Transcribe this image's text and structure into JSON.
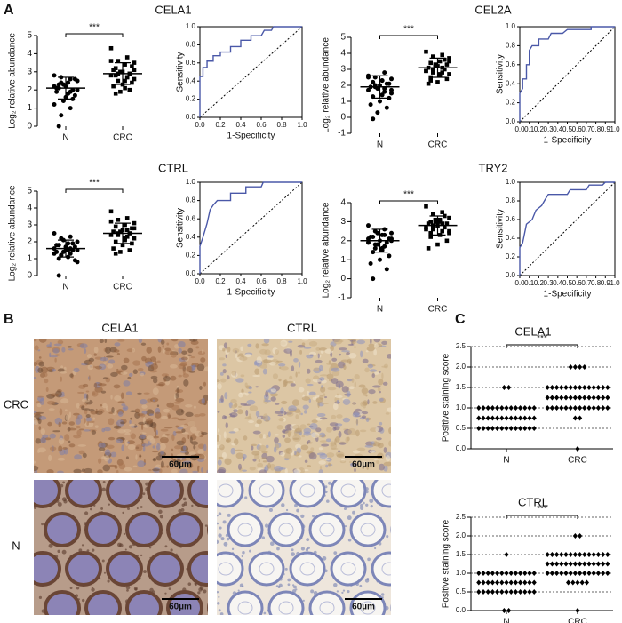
{
  "panel_labels": [
    "A",
    "B",
    "C"
  ],
  "histology": {
    "columns": [
      "CELA1",
      "CTRL"
    ],
    "rows": [
      "CRC",
      "N"
    ],
    "scale_bar": "60µm"
  },
  "chart_data": [
    {
      "type": "strip",
      "title": "CELA1",
      "y_label": "Log₂ relative abundance",
      "annotation": "***",
      "categories": [
        "N",
        "CRC"
      ],
      "ylim": [
        0,
        5
      ],
      "yticks": [
        0,
        1,
        2,
        3,
        4,
        5
      ],
      "groups": [
        {
          "marker": "circle",
          "mean": 2.1,
          "sd": 0.6,
          "values": [
            2.8,
            2.6,
            2.7,
            2.5,
            2.4,
            2.3,
            2.6,
            2.2,
            2.1,
            2.0,
            2.3,
            2.2,
            1.9,
            2.4,
            2.0,
            1.8,
            2.1,
            1.7,
            1.6,
            1.9,
            1.5,
            1.4,
            1.2,
            1.0,
            0.6,
            2.5,
            1.8,
            0.0
          ]
        },
        {
          "marker": "square",
          "mean": 2.9,
          "sd": 0.6,
          "values": [
            4.3,
            3.8,
            3.6,
            3.5,
            3.4,
            3.2,
            3.3,
            3.0,
            3.1,
            2.9,
            3.0,
            2.8,
            2.7,
            2.9,
            2.6,
            2.5,
            2.8,
            2.4,
            2.3,
            2.2,
            2.0,
            1.9,
            3.6,
            2.7,
            2.5,
            3.1,
            2.1,
            1.8
          ]
        }
      ]
    },
    {
      "type": "line",
      "x_label": "1-Specificity",
      "y_label": "Sensitivity",
      "color": "#4a58a8",
      "xlim": [
        0,
        1
      ],
      "ylim": [
        0,
        1
      ],
      "xticks": [
        {
          "value": 0,
          "label": "0.0"
        },
        {
          "value": 0.2,
          "label": "0.2"
        },
        {
          "value": 0.4,
          "label": "0.4"
        },
        {
          "value": 0.6,
          "label": "0.6"
        },
        {
          "value": 0.8,
          "label": "0.8"
        },
        {
          "value": 1,
          "label": "1.0"
        }
      ],
      "yticks": [
        {
          "value": 0,
          "label": "0.0"
        },
        {
          "value": 0.2,
          "label": "0.2"
        },
        {
          "value": 0.4,
          "label": "0.4"
        },
        {
          "value": 0.6,
          "label": "0.6"
        },
        {
          "value": 0.8,
          "label": "0.8"
        },
        {
          "value": 1,
          "label": "1.0"
        }
      ],
      "x": [
        0,
        0,
        0.03,
        0.03,
        0.07,
        0.07,
        0.13,
        0.13,
        0.2,
        0.2,
        0.3,
        0.3,
        0.4,
        0.4,
        0.5,
        0.5,
        0.6,
        0.63,
        0.7,
        0.72,
        1
      ],
      "series": [
        {
          "values": [
            0,
            0.45,
            0.45,
            0.55,
            0.55,
            0.62,
            0.62,
            0.68,
            0.68,
            0.72,
            0.72,
            0.78,
            0.78,
            0.85,
            0.85,
            0.9,
            0.9,
            0.96,
            0.96,
            1,
            1
          ]
        }
      ]
    },
    {
      "type": "strip",
      "title": "CEL2A",
      "y_label": "Log₂ relative abundance",
      "annotation": "***",
      "categories": [
        "N",
        "CRC"
      ],
      "ylim": [
        -1,
        5
      ],
      "yticks": [
        -1,
        0,
        1,
        2,
        3,
        4,
        5
      ],
      "groups": [
        {
          "marker": "circle",
          "mean": 1.9,
          "sd": 0.7,
          "values": [
            2.6,
            2.8,
            2.5,
            2.4,
            2.3,
            2.2,
            2.1,
            2.0,
            1.9,
            2.1,
            1.8,
            1.7,
            1.6,
            1.9,
            1.5,
            1.4,
            1.3,
            1.2,
            1.0,
            0.8,
            0.6,
            0.3,
            2.5,
            1.8,
            2.0,
            1.7,
            2.3,
            -0.1
          ]
        },
        {
          "marker": "square",
          "mean": 3.1,
          "sd": 0.6,
          "values": [
            4.1,
            3.9,
            3.8,
            3.7,
            3.5,
            3.4,
            3.3,
            3.2,
            3.1,
            3.0,
            3.2,
            2.9,
            2.8,
            3.0,
            2.7,
            2.6,
            2.5,
            2.4,
            2.2,
            2.1,
            3.6,
            3.3,
            2.9,
            3.1,
            2.8,
            3.5,
            2.7,
            2.3
          ]
        }
      ]
    },
    {
      "type": "line",
      "x_label": "1-Specificity",
      "y_label": "Sensitivity",
      "color": "#4a58a8",
      "xlim": [
        0,
        1
      ],
      "ylim": [
        0,
        1
      ],
      "xticks": [
        {
          "value": 0,
          "label": "0.0"
        },
        {
          "value": 0.1,
          "label": "0.1"
        },
        {
          "value": 0.2,
          "label": "0.2"
        },
        {
          "value": 0.3,
          "label": "0.3"
        },
        {
          "value": 0.4,
          "label": "0.4"
        },
        {
          "value": 0.5,
          "label": "0.5"
        },
        {
          "value": 0.6,
          "label": "0.6"
        },
        {
          "value": 0.7,
          "label": "0.7"
        },
        {
          "value": 0.8,
          "label": "0.8"
        },
        {
          "value": 0.9,
          "label": "0.9"
        },
        {
          "value": 1,
          "label": "1.0"
        }
      ],
      "yticks": [
        {
          "value": 0,
          "label": "0.0"
        },
        {
          "value": 0.2,
          "label": "0.2"
        },
        {
          "value": 0.4,
          "label": "0.4"
        },
        {
          "value": 0.6,
          "label": "0.6"
        },
        {
          "value": 0.8,
          "label": "0.8"
        },
        {
          "value": 1,
          "label": "1.0"
        }
      ],
      "x": [
        0,
        0,
        0.03,
        0.03,
        0.07,
        0.07,
        0.1,
        0.1,
        0.13,
        0.2,
        0.2,
        0.3,
        0.33,
        0.45,
        0.5,
        0.75,
        0.75,
        1
      ],
      "series": [
        {
          "values": [
            0,
            0.3,
            0.35,
            0.45,
            0.45,
            0.6,
            0.6,
            0.75,
            0.8,
            0.8,
            0.87,
            0.87,
            0.93,
            0.93,
            0.97,
            0.97,
            1,
            1
          ]
        }
      ]
    },
    {
      "type": "strip",
      "title": "CTRL",
      "y_label": "Log₂ relative abundance",
      "annotation": "***",
      "categories": [
        "N",
        "CRC"
      ],
      "ylim": [
        0,
        5
      ],
      "yticks": [
        0,
        1,
        2,
        3,
        4,
        5
      ],
      "groups": [
        {
          "marker": "circle",
          "mean": 1.6,
          "sd": 0.5,
          "values": [
            2.5,
            2.3,
            2.2,
            2.0,
            1.9,
            1.8,
            1.7,
            1.6,
            1.8,
            1.5,
            1.4,
            1.6,
            1.3,
            1.2,
            1.5,
            1.1,
            1.0,
            0.9,
            1.7,
            1.4,
            1.9,
            2.1,
            1.3,
            1.6,
            1.2,
            0.8,
            1.5,
            0.0
          ]
        },
        {
          "marker": "square",
          "mean": 2.5,
          "sd": 0.6,
          "values": [
            3.8,
            3.4,
            3.3,
            3.1,
            3.0,
            2.9,
            2.8,
            2.7,
            2.6,
            2.5,
            2.6,
            2.4,
            2.3,
            2.5,
            2.2,
            2.1,
            2.0,
            1.9,
            1.8,
            1.6,
            1.5,
            1.4,
            3.2,
            2.7,
            2.4,
            2.8,
            2.2,
            1.3
          ]
        }
      ]
    },
    {
      "type": "line",
      "x_label": "1-Specificity",
      "y_label": "Sensitivity",
      "color": "#4a58a8",
      "xlim": [
        0,
        1
      ],
      "ylim": [
        0,
        1
      ],
      "xticks": [
        {
          "value": 0,
          "label": "0.0"
        },
        {
          "value": 0.2,
          "label": "0.2"
        },
        {
          "value": 0.4,
          "label": "0.4"
        },
        {
          "value": 0.6,
          "label": "0.6"
        },
        {
          "value": 0.8,
          "label": "0.8"
        },
        {
          "value": 1,
          "label": "1.0"
        }
      ],
      "yticks": [
        {
          "value": 0,
          "label": "0.0"
        },
        {
          "value": 0.2,
          "label": "0.2"
        },
        {
          "value": 0.4,
          "label": "0.4"
        },
        {
          "value": 0.6,
          "label": "0.6"
        },
        {
          "value": 0.8,
          "label": "0.8"
        },
        {
          "value": 1,
          "label": "1.0"
        }
      ],
      "x": [
        0,
        0,
        0.03,
        0.07,
        0.1,
        0.13,
        0.17,
        0.3,
        0.3,
        0.45,
        0.45,
        0.6,
        0.62,
        1
      ],
      "series": [
        {
          "values": [
            0,
            0.3,
            0.4,
            0.55,
            0.7,
            0.75,
            0.8,
            0.8,
            0.88,
            0.88,
            0.95,
            0.95,
            1,
            1
          ]
        }
      ]
    },
    {
      "type": "strip",
      "title": "TRY2",
      "y_label": "Log₂ relative abundance",
      "annotation": "***",
      "categories": [
        "N",
        "CRC"
      ],
      "ylim": [
        -1,
        4
      ],
      "yticks": [
        -1,
        0,
        1,
        2,
        3,
        4
      ],
      "groups": [
        {
          "marker": "circle",
          "mean": 2.0,
          "sd": 0.6,
          "values": [
            2.8,
            2.6,
            2.5,
            2.4,
            2.3,
            2.2,
            2.1,
            2.0,
            2.2,
            1.9,
            1.8,
            2.1,
            1.7,
            1.6,
            2.0,
            1.5,
            1.4,
            1.2,
            1.0,
            0.8,
            0.5,
            2.4,
            1.9,
            2.3,
            1.8,
            2.1,
            1.6,
            0.0
          ]
        },
        {
          "marker": "square",
          "mean": 2.8,
          "sd": 0.5,
          "values": [
            3.8,
            3.5,
            3.4,
            3.2,
            3.1,
            3.0,
            2.9,
            2.8,
            2.9,
            2.7,
            3.0,
            2.6,
            2.5,
            2.8,
            2.4,
            2.3,
            2.2,
            2.0,
            1.8,
            1.6,
            3.3,
            3.1,
            2.7,
            2.9,
            2.6,
            2.5,
            3.0,
            2.4
          ]
        }
      ]
    },
    {
      "type": "line",
      "x_label": "1-Specificity",
      "y_label": "Sensitivity",
      "color": "#4a58a8",
      "xlim": [
        0,
        1
      ],
      "ylim": [
        0,
        1
      ],
      "xticks": [
        {
          "value": 0,
          "label": "0.0"
        },
        {
          "value": 0.1,
          "label": "0.1"
        },
        {
          "value": 0.2,
          "label": "0.2"
        },
        {
          "value": 0.3,
          "label": "0.3"
        },
        {
          "value": 0.4,
          "label": "0.4"
        },
        {
          "value": 0.5,
          "label": "0.5"
        },
        {
          "value": 0.6,
          "label": "0.6"
        },
        {
          "value": 0.7,
          "label": "0.7"
        },
        {
          "value": 0.8,
          "label": "0.8"
        },
        {
          "value": 0.9,
          "label": "0.9"
        },
        {
          "value": 1,
          "label": "1.0"
        }
      ],
      "yticks": [
        {
          "value": 0,
          "label": "0.0"
        },
        {
          "value": 0.2,
          "label": "0.2"
        },
        {
          "value": 0.4,
          "label": "0.4"
        },
        {
          "value": 0.6,
          "label": "0.6"
        },
        {
          "value": 0.8,
          "label": "0.8"
        },
        {
          "value": 1,
          "label": "1.0"
        }
      ],
      "x": [
        0,
        0,
        0.03,
        0.07,
        0.13,
        0.17,
        0.23,
        0.27,
        0.3,
        0.5,
        0.53,
        0.7,
        0.73,
        0.87,
        0.9,
        1
      ],
      "series": [
        {
          "values": [
            0,
            0.3,
            0.35,
            0.55,
            0.6,
            0.7,
            0.75,
            0.82,
            0.87,
            0.87,
            0.92,
            0.92,
            0.97,
            0.97,
            1,
            1
          ]
        }
      ]
    },
    {
      "type": "strip",
      "title": "CELA1",
      "y_label": "Positive staining score",
      "annotation": "***",
      "grid": true,
      "categories": [
        "N",
        "CRC"
      ],
      "ylim": [
        0,
        2.5
      ],
      "yticks": [
        {
          "value": 0,
          "label": "0.0"
        },
        {
          "value": 0.5,
          "label": "0.5"
        },
        {
          "value": 1,
          "label": "1.0"
        },
        {
          "value": 1.5,
          "label": "1.5"
        },
        {
          "value": 2,
          "label": "2.0"
        },
        {
          "value": 2.5,
          "label": "2.5"
        }
      ],
      "groups": [
        {
          "marker": "diamond",
          "values": [
            0.5,
            0.5,
            0.5,
            0.5,
            0.5,
            0.5,
            0.5,
            0.5,
            0.5,
            0.5,
            0.5,
            0.5,
            0.5,
            0.75,
            0.75,
            0.75,
            0.75,
            0.75,
            0.75,
            0.75,
            0.75,
            0.75,
            0.75,
            0.75,
            0.75,
            0.75,
            1,
            1,
            1,
            1,
            1,
            1,
            1,
            1,
            1,
            1,
            1,
            1,
            1,
            1.5,
            1.5
          ]
        },
        {
          "marker": "diamond",
          "values": [
            0,
            0.75,
            0.75,
            1,
            1,
            1,
            1,
            1,
            1,
            1,
            1,
            1,
            1,
            1,
            1,
            1,
            1,
            1.25,
            1.25,
            1.25,
            1.25,
            1.25,
            1.25,
            1.25,
            1.25,
            1.25,
            1.25,
            1.25,
            1.25,
            1.25,
            1.25,
            1.5,
            1.5,
            1.5,
            1.5,
            1.5,
            1.5,
            1.5,
            1.5,
            1.5,
            1.5,
            1.5,
            1.5,
            1.5,
            1.5,
            2,
            2,
            2,
            2
          ]
        }
      ]
    },
    {
      "type": "strip",
      "title": "CTRL",
      "y_label": "Positive staining score",
      "annotation": "***",
      "grid": true,
      "categories": [
        "N",
        "CRC"
      ],
      "ylim": [
        0,
        2.5
      ],
      "yticks": [
        {
          "value": 0,
          "label": "0.0"
        },
        {
          "value": 0.5,
          "label": "0.5"
        },
        {
          "value": 1,
          "label": "1.0"
        },
        {
          "value": 1.5,
          "label": "1.5"
        },
        {
          "value": 2,
          "label": "2.0"
        },
        {
          "value": 2.5,
          "label": "2.5"
        }
      ],
      "groups": [
        {
          "marker": "diamond",
          "values": [
            0,
            0,
            0.5,
            0.5,
            0.5,
            0.5,
            0.5,
            0.5,
            0.5,
            0.5,
            0.5,
            0.5,
            0.5,
            0.5,
            0.5,
            0.75,
            0.75,
            0.75,
            0.75,
            0.75,
            0.75,
            0.75,
            0.75,
            0.75,
            0.75,
            0.75,
            0.75,
            0.75,
            1,
            1,
            1,
            1,
            1,
            1,
            1,
            1,
            1,
            1,
            1,
            1,
            1,
            1.5
          ]
        },
        {
          "marker": "diamond",
          "values": [
            0,
            0.75,
            0.75,
            0.75,
            0.75,
            0.75,
            1,
            1,
            1,
            1,
            1,
            1,
            1,
            1,
            1,
            1,
            1,
            1,
            1,
            1,
            1.25,
            1.25,
            1.25,
            1.25,
            1.25,
            1.25,
            1.25,
            1.25,
            1.25,
            1.25,
            1.25,
            1.25,
            1.25,
            1.25,
            1.5,
            1.5,
            1.5,
            1.5,
            1.5,
            1.5,
            1.5,
            1.5,
            1.5,
            1.5,
            1.5,
            1.5,
            1.5,
            1.5,
            2,
            2
          ]
        }
      ]
    }
  ]
}
